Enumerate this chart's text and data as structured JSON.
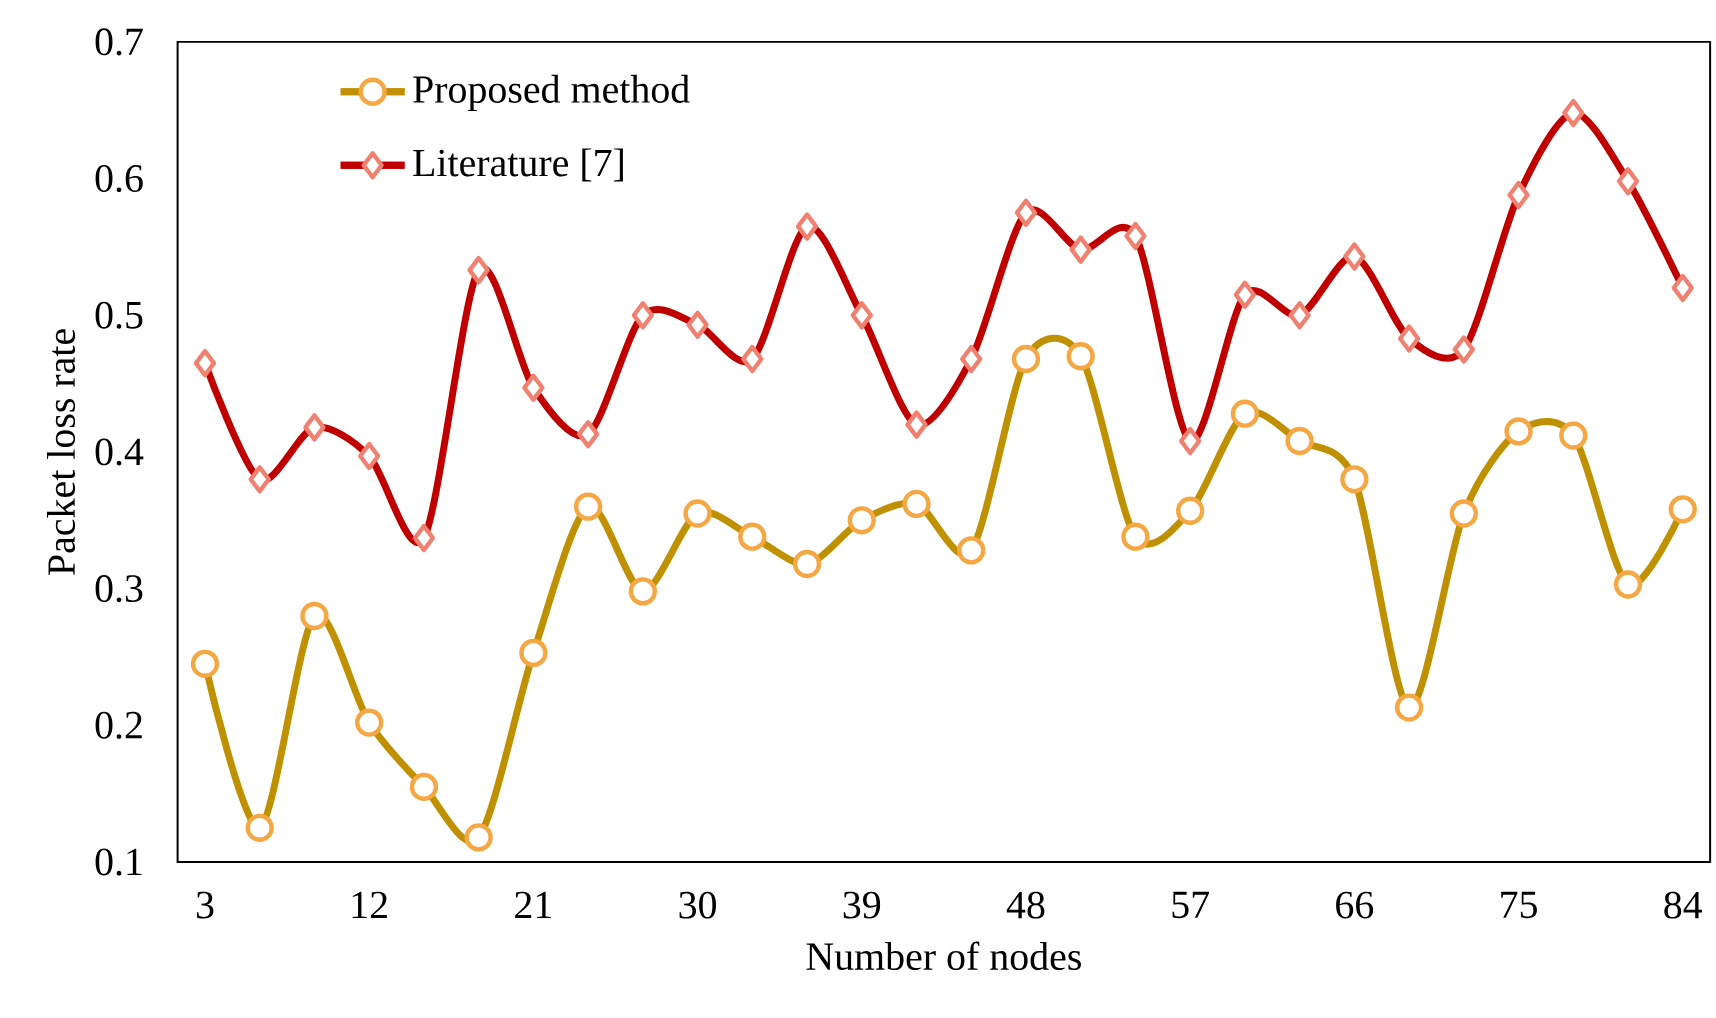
{
  "chart_data": {
    "type": "line",
    "xlabel": "Number of nodes",
    "ylabel": "Packet loss rate",
    "x": [
      3,
      6,
      9,
      12,
      15,
      18,
      21,
      24,
      27,
      30,
      33,
      36,
      39,
      42,
      45,
      48,
      51,
      54,
      57,
      60,
      63,
      66,
      69,
      72,
      75,
      78,
      81,
      84
    ],
    "series": [
      {
        "name": "Proposed method",
        "color": "#bf9000",
        "marker": "circle",
        "values": [
          0.245,
          0.125,
          0.28,
          0.202,
          0.155,
          0.118,
          0.253,
          0.36,
          0.298,
          0.355,
          0.338,
          0.318,
          0.35,
          0.362,
          0.328,
          0.468,
          0.47,
          0.338,
          0.357,
          0.428,
          0.408,
          0.38,
          0.213,
          0.355,
          0.415,
          0.412,
          0.303,
          0.358
        ]
      },
      {
        "name": "Literature [7]",
        "color": "#c00000",
        "marker": "diamond",
        "values": [
          0.465,
          0.38,
          0.418,
          0.397,
          0.337,
          0.533,
          0.447,
          0.413,
          0.5,
          0.493,
          0.468,
          0.565,
          0.5,
          0.42,
          0.468,
          0.575,
          0.548,
          0.558,
          0.408,
          0.515,
          0.5,
          0.543,
          0.483,
          0.475,
          0.588,
          0.648,
          0.598,
          0.52
        ]
      }
    ],
    "xlim": [
      1.5,
      85.5
    ],
    "xticks": [
      3,
      12,
      21,
      30,
      39,
      48,
      57,
      66,
      75,
      84
    ],
    "ylim": [
      0.1,
      0.7
    ],
    "yticks": [
      0.1,
      0.2,
      0.3,
      0.4,
      0.5,
      0.6,
      0.7
    ],
    "grid": false,
    "legend": "top left",
    "line_style": "solid"
  }
}
